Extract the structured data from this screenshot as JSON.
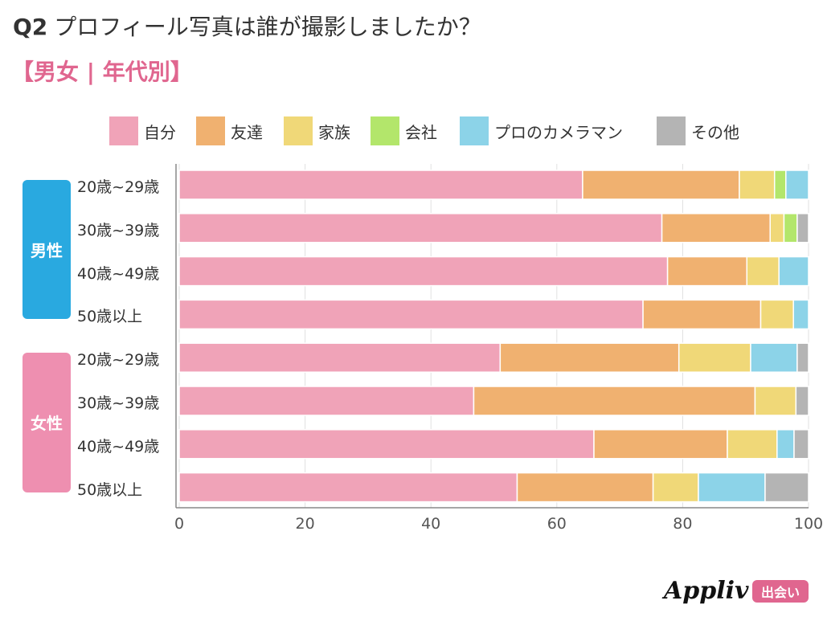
{
  "header": {
    "q_number": "Q2",
    "question": "プロフィール写真は誰が撮影しましたか？",
    "subtitle": "【男女 | 年代別】"
  },
  "colors": {
    "male": "#29a9e0",
    "female": "#ee8fb0"
  },
  "logo": {
    "name": "Appliv",
    "badge": "出会い"
  },
  "chart_data": {
    "type": "bar",
    "orientation": "horizontal",
    "stacked": true,
    "xlim": [
      0,
      100
    ],
    "x_ticks": [
      "0",
      "20",
      "40",
      "60",
      "80",
      "100"
    ],
    "grid": true,
    "legend_position": "top",
    "groups": [
      {
        "label": "男性",
        "rows": [
          0,
          1,
          2,
          3
        ]
      },
      {
        "label": "女性",
        "rows": [
          4,
          5,
          6,
          7
        ]
      }
    ],
    "categories": [
      "20歳~29歳",
      "30歳~39歳",
      "40歳~49歳",
      "50歳以上",
      "20歳~29歳",
      "30歳~39歳",
      "40歳~49歳",
      "50歳以上"
    ],
    "series": [
      {
        "name": "自分",
        "color": "#f0a3b8",
        "values": [
          64.1,
          76.7,
          77.6,
          73.7,
          51.0,
          46.8,
          65.9,
          53.7
        ]
      },
      {
        "name": "友達",
        "color": "#f0b170",
        "values": [
          24.9,
          17.2,
          12.6,
          18.7,
          28.4,
          44.7,
          21.2,
          21.6
        ]
      },
      {
        "name": "家族",
        "color": "#f0d878",
        "values": [
          5.6,
          2.2,
          5.1,
          5.2,
          11.4,
          6.5,
          7.9,
          7.2
        ]
      },
      {
        "name": "会社",
        "color": "#b3e66b",
        "values": [
          1.8,
          2.1,
          0.0,
          0.0,
          0.0,
          0.0,
          0.0,
          0.0
        ]
      },
      {
        "name": "プロのカメラマン",
        "color": "#8cd3e8",
        "values": [
          3.6,
          0.0,
          4.7,
          2.4,
          7.4,
          0.0,
          2.7,
          10.6
        ]
      },
      {
        "name": "その他",
        "color": "#b4b4b4",
        "values": [
          0.0,
          1.8,
          0.0,
          0.0,
          1.8,
          2.0,
          2.3,
          6.9
        ]
      }
    ]
  }
}
